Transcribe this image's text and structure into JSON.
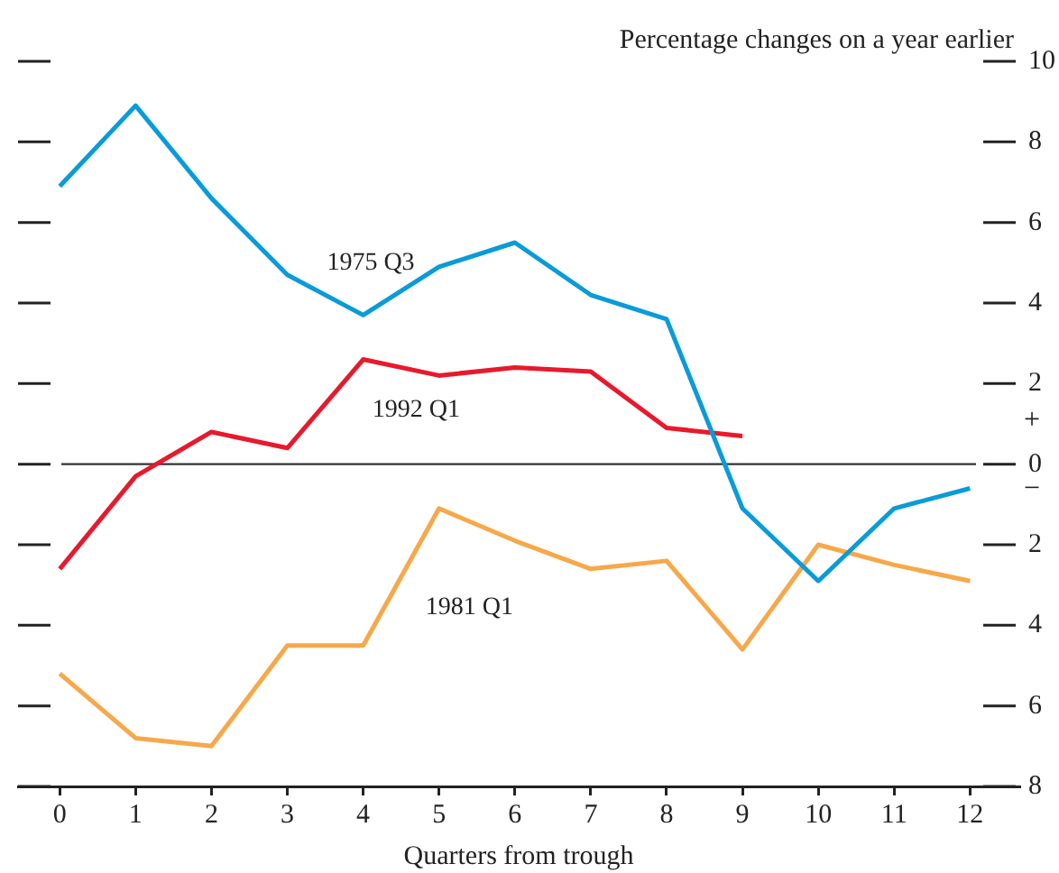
{
  "chart_data": {
    "type": "line",
    "ylabel": "Percentage changes on a year earlier",
    "xlabel": "Quarters from trough",
    "x": [
      0,
      1,
      2,
      3,
      4,
      5,
      6,
      7,
      8,
      9,
      10,
      11,
      12
    ],
    "xlim": [
      -0.55,
      12.65
    ],
    "xticks": [
      0,
      1,
      2,
      3,
      4,
      5,
      6,
      7,
      8,
      9,
      10,
      11,
      12
    ],
    "ylim": [
      -8,
      10
    ],
    "yticks": [
      {
        "value": -8,
        "label": "8"
      },
      {
        "value": -6,
        "label": "6"
      },
      {
        "value": -4,
        "label": "4"
      },
      {
        "value": -2,
        "label": "2"
      },
      0,
      2,
      4,
      6,
      8,
      10
    ],
    "series": [
      {
        "name": "1975 Q3",
        "color": "#0a9bd8",
        "values": [
          6.9,
          8.9,
          6.6,
          4.7,
          3.7,
          4.9,
          5.5,
          4.2,
          3.6,
          -1.1,
          -2.9,
          -1.1,
          -0.6
        ]
      },
      {
        "name": "1992 Q1",
        "color": "#e8192c",
        "values": [
          -2.6,
          -0.3,
          0.8,
          0.4,
          2.6,
          2.2,
          2.4,
          2.3,
          0.9,
          0.7,
          null,
          null,
          null
        ]
      },
      {
        "name": "1981 Q1",
        "color": "#f7a84a",
        "values": [
          -5.2,
          -6.8,
          -7.0,
          -4.5,
          -4.5,
          -1.1,
          -1.9,
          -2.6,
          -2.4,
          -4.6,
          -2.0,
          -2.5,
          -2.9
        ]
      }
    ],
    "ref_lines": [
      {
        "axis": "y",
        "value": 0,
        "color": "#333333"
      }
    ],
    "annotations": [
      "+",
      "−"
    ],
    "grid": false,
    "legend": false,
    "marker": "none",
    "line_style": "solid"
  }
}
